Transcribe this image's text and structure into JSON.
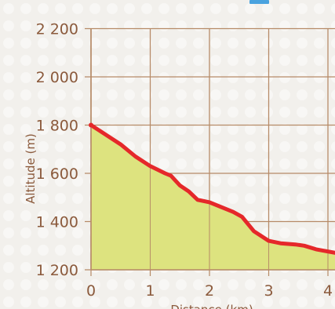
{
  "chart_data": {
    "type": "area",
    "xlabel": "Distance (km)",
    "ylabel": "Altitude (m)",
    "xlim": [
      0,
      4.13
    ],
    "ylim": [
      1200,
      2200
    ],
    "x_ticks": [
      {
        "value": 0,
        "label": "0"
      },
      {
        "value": 1,
        "label": "1"
      },
      {
        "value": 2,
        "label": "2"
      },
      {
        "value": 3,
        "label": "3"
      },
      {
        "value": 4,
        "label": "4"
      }
    ],
    "y_ticks": [
      {
        "value": 1200,
        "label": "1 200"
      },
      {
        "value": 1400,
        "label": "1 400"
      },
      {
        "value": 1600,
        "label": "1 600"
      },
      {
        "value": 1800,
        "label": "1 800"
      },
      {
        "value": 2000,
        "label": "2 000"
      },
      {
        "value": 2200,
        "label": "2 200"
      }
    ],
    "grid": "on",
    "series": [
      {
        "x": [
          0,
          0.25,
          0.5,
          0.75,
          1.0,
          1.25,
          1.35,
          1.5,
          1.65,
          1.8,
          2.0,
          2.2,
          2.4,
          2.55,
          2.75,
          3.0,
          3.2,
          3.45,
          3.6,
          3.8,
          4.13
        ],
        "y": [
          1800,
          1760,
          1720,
          1670,
          1630,
          1600,
          1590,
          1550,
          1525,
          1490,
          1480,
          1460,
          1440,
          1420,
          1360,
          1320,
          1310,
          1305,
          1300,
          1285,
          1270
        ]
      }
    ],
    "colors": {
      "line": "#e5282a",
      "fill": "#dde37f",
      "grid": "#b68a67",
      "text": "#8b5a3c"
    }
  },
  "decor": {
    "badge_icon": "blue-badge-icon"
  }
}
